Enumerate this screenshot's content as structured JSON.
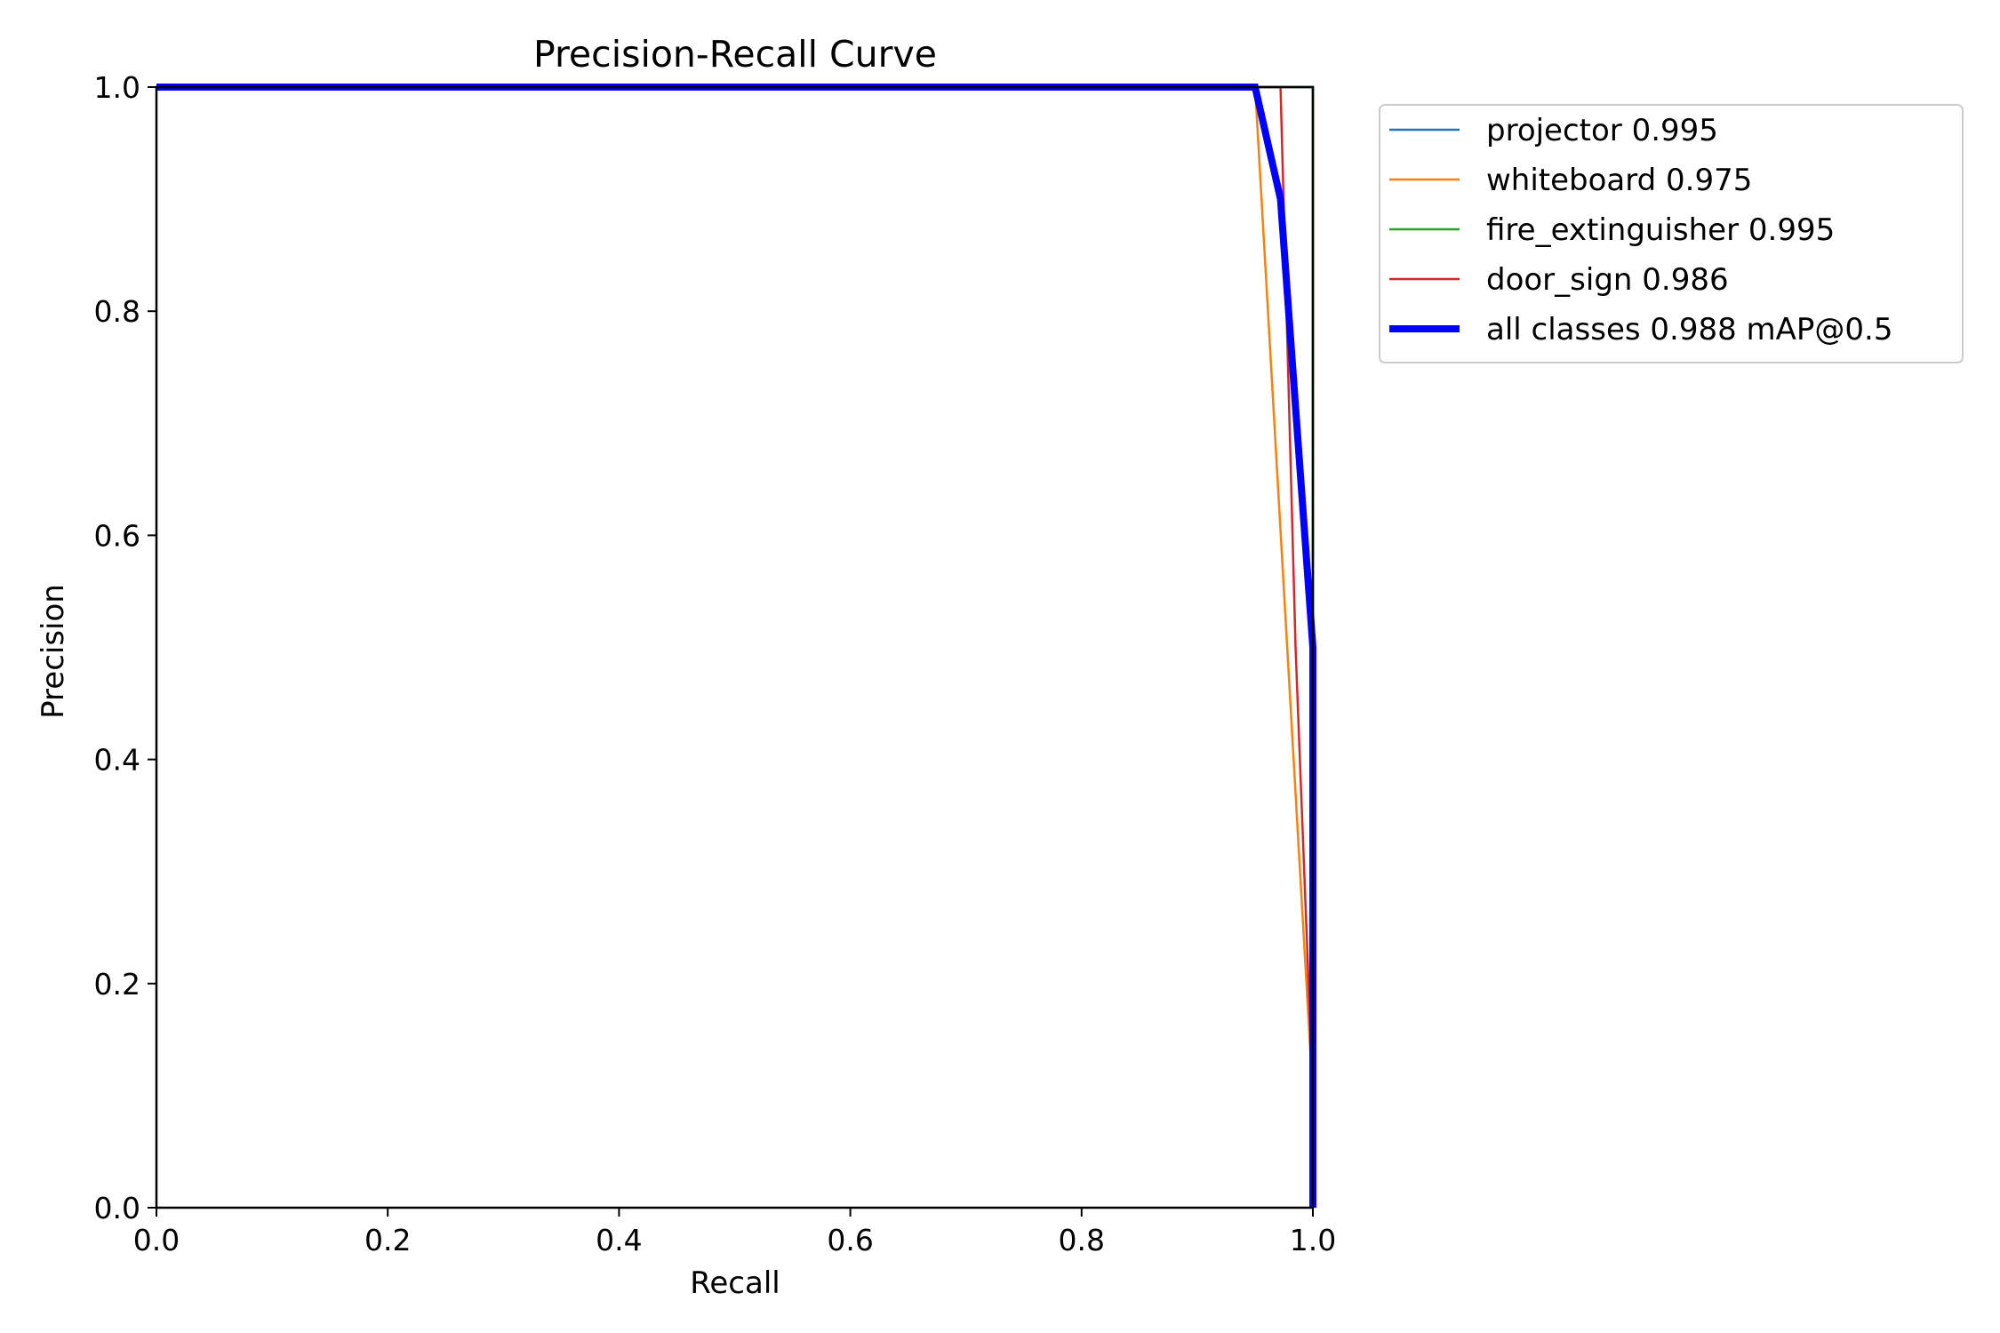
{
  "chart_data": {
    "type": "line",
    "title": "Precision-Recall Curve",
    "xlabel": "Recall",
    "ylabel": "Precision",
    "xlim": [
      0.0,
      1.0
    ],
    "ylim": [
      0.0,
      1.0
    ],
    "x_ticks": [
      "0.0",
      "0.2",
      "0.4",
      "0.6",
      "0.8",
      "1.0"
    ],
    "y_ticks": [
      "0.0",
      "0.2",
      "0.4",
      "0.6",
      "0.8",
      "1.0"
    ],
    "grid": false,
    "legend_position": "outside-top-right",
    "series": [
      {
        "name": "projector 0.995",
        "color": "#1f77b4",
        "width": "thin",
        "x": [
          0.0,
          1.0,
          1.0,
          1.0
        ],
        "y": [
          1.0,
          1.0,
          0.55,
          0.0
        ]
      },
      {
        "name": "whiteboard 0.975",
        "color": "#ff7f0e",
        "width": "thin",
        "x": [
          0.0,
          0.95,
          1.0,
          1.0
        ],
        "y": [
          1.0,
          1.0,
          0.1,
          0.0
        ]
      },
      {
        "name": "fire_extinguisher 0.995",
        "color": "#2ca02c",
        "width": "thin",
        "x": [
          0.0,
          1.0,
          1.0,
          1.0
        ],
        "y": [
          1.0,
          1.0,
          0.55,
          0.0
        ]
      },
      {
        "name": "door_sign 0.986",
        "color": "#d62728",
        "width": "thin",
        "x": [
          0.0,
          0.972,
          0.985,
          1.0,
          1.0
        ],
        "y": [
          1.0,
          1.0,
          0.5,
          0.1,
          0.0
        ]
      },
      {
        "name": "all classes 0.988 mAP@0.5",
        "color": "#0000ff",
        "width": "thick",
        "x": [
          0.0,
          0.95,
          0.972,
          1.0,
          1.0
        ],
        "y": [
          1.0,
          1.0,
          0.9,
          0.5,
          0.0
        ]
      }
    ]
  }
}
